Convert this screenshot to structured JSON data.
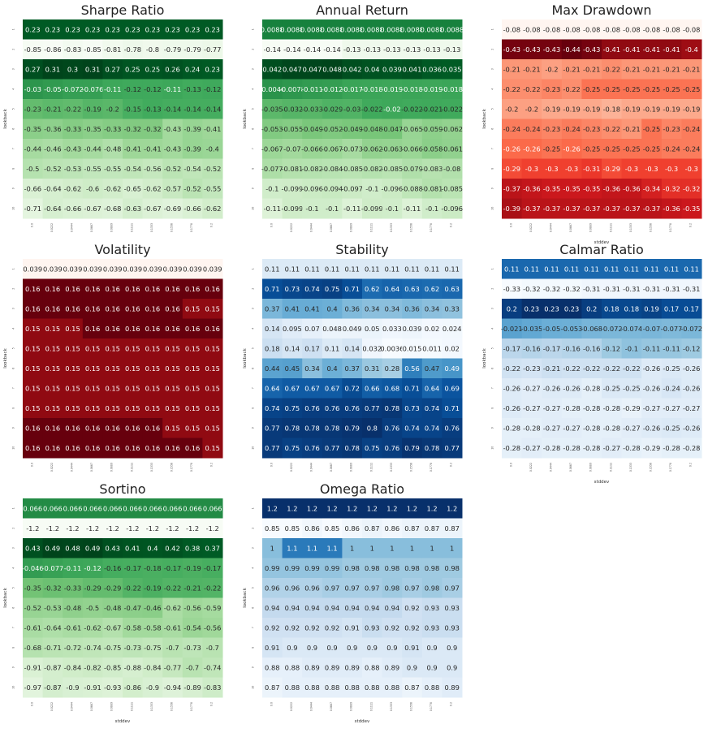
{
  "figure": {
    "x_ticks": [
      "0.0",
      "0.0222",
      "0.0444",
      "0.0667",
      "0.0889",
      "0.1111",
      "0.1333",
      "0.1556",
      "0.1778",
      "0.2"
    ],
    "y_ticks": [
      "1",
      "2",
      "3",
      "4",
      "5",
      "6",
      "7",
      "8",
      "9",
      "10"
    ],
    "xlabel": "stddev",
    "ylabel": "lookback"
  },
  "chart_data": [
    {
      "type": "heatmap",
      "title": "Sharpe Ratio",
      "colormap": "Greens",
      "show_xlabel": false,
      "show_ylabel": true,
      "x": [
        "0.0",
        "0.0222",
        "0.0444",
        "0.0667",
        "0.0889",
        "0.1111",
        "0.1333",
        "0.1556",
        "0.1778",
        "0.2"
      ],
      "y": [
        "1",
        "2",
        "3",
        "4",
        "5",
        "6",
        "7",
        "8",
        "9",
        "10"
      ],
      "values": [
        [
          0.23,
          0.23,
          0.23,
          0.23,
          0.23,
          0.23,
          0.23,
          0.23,
          0.23,
          0.23
        ],
        [
          -0.85,
          -0.86,
          -0.83,
          -0.85,
          -0.81,
          -0.78,
          -0.8,
          -0.79,
          -0.79,
          -0.77
        ],
        [
          0.27,
          0.31,
          0.3,
          0.31,
          0.27,
          0.25,
          0.25,
          0.26,
          0.24,
          0.23
        ],
        [
          -0.03,
          -0.05,
          -0.072,
          -0.076,
          -0.11,
          -0.12,
          -0.12,
          -0.11,
          -0.13,
          -0.12
        ],
        [
          -0.23,
          -0.21,
          -0.22,
          -0.19,
          -0.2,
          -0.15,
          -0.13,
          -0.14,
          -0.14,
          -0.14
        ],
        [
          -0.35,
          -0.36,
          -0.33,
          -0.35,
          -0.33,
          -0.32,
          -0.32,
          -0.43,
          -0.39,
          -0.41
        ],
        [
          -0.44,
          -0.46,
          -0.43,
          -0.44,
          -0.48,
          -0.41,
          -0.41,
          -0.43,
          -0.39,
          -0.4
        ],
        [
          -0.5,
          -0.52,
          -0.53,
          -0.55,
          -0.55,
          -0.54,
          -0.56,
          -0.52,
          -0.54,
          -0.52
        ],
        [
          -0.66,
          -0.64,
          -0.62,
          -0.6,
          -0.62,
          -0.65,
          -0.62,
          -0.57,
          -0.52,
          -0.55
        ],
        [
          -0.71,
          -0.64,
          -0.66,
          -0.67,
          -0.68,
          -0.63,
          -0.67,
          -0.69,
          -0.66,
          -0.62
        ]
      ]
    },
    {
      "type": "heatmap",
      "title": "Annual Return",
      "colormap": "Greens",
      "show_xlabel": false,
      "show_ylabel": true,
      "x": [
        "0.0",
        "0.0222",
        "0.0444",
        "0.0667",
        "0.0889",
        "0.1111",
        "0.1333",
        "0.1556",
        "0.1778",
        "0.2"
      ],
      "y": [
        "1",
        "2",
        "3",
        "4",
        "5",
        "6",
        "7",
        "8",
        "9",
        "10"
      ],
      "values": [
        [
          "0.0088",
          "0.0088",
          "0.0088",
          "0.0088",
          "0.0088",
          "0.0088",
          "0.0088",
          "0.0088",
          "0.0088",
          "0.0088"
        ],
        [
          -0.14,
          -0.14,
          -0.14,
          -0.14,
          -0.13,
          -0.13,
          -0.13,
          -0.13,
          -0.13,
          -0.13
        ],
        [
          0.042,
          0.047,
          0.047,
          0.048,
          0.042,
          0.04,
          0.039,
          0.041,
          0.036,
          0.035
        ],
        [
          -0.0046,
          -0.0078,
          -0.011,
          -0.012,
          -0.017,
          -0.018,
          -0.019,
          -0.018,
          -0.019,
          -0.018
        ],
        [
          -0.035,
          -0.032,
          -0.033,
          -0.029,
          -0.03,
          -0.022,
          -0.02,
          -0.022,
          -0.021,
          -0.022
        ],
        [
          -0.053,
          -0.055,
          -0.049,
          -0.052,
          -0.049,
          -0.048,
          -0.047,
          -0.065,
          -0.059,
          -0.062
        ],
        [
          -0.067,
          -0.07,
          -0.066,
          -0.067,
          -0.073,
          -0.062,
          -0.063,
          -0.066,
          -0.058,
          -0.061
        ],
        [
          -0.077,
          -0.081,
          -0.082,
          -0.084,
          -0.085,
          -0.082,
          -0.085,
          -0.079,
          -0.083,
          -0.08
        ],
        [
          -0.1,
          -0.099,
          -0.096,
          -0.094,
          -0.097,
          -0.1,
          -0.096,
          -0.088,
          -0.081,
          -0.085
        ],
        [
          -0.11,
          -0.099,
          -0.1,
          -0.1,
          -0.11,
          -0.099,
          -0.1,
          -0.11,
          -0.1,
          -0.096
        ]
      ]
    },
    {
      "type": "heatmap",
      "title": "Max Drawdown",
      "colormap": "Reds",
      "reverse": true,
      "show_xlabel": true,
      "show_ylabel": true,
      "x": [
        "0.0",
        "0.0222",
        "0.0444",
        "0.0667",
        "0.0889",
        "0.1111",
        "0.1333",
        "0.1556",
        "0.1778",
        "0.2"
      ],
      "y": [
        "1",
        "2",
        "3",
        "4",
        "5",
        "6",
        "7",
        "8",
        "9",
        "10"
      ],
      "values": [
        [
          -0.08,
          -0.08,
          -0.08,
          -0.08,
          -0.08,
          -0.08,
          -0.08,
          -0.08,
          -0.08,
          -0.08
        ],
        [
          -0.43,
          -0.43,
          -0.43,
          -0.44,
          -0.43,
          -0.41,
          -0.41,
          -0.41,
          -0.41,
          -0.4
        ],
        [
          -0.21,
          -0.21,
          -0.2,
          -0.21,
          -0.21,
          -0.22,
          -0.21,
          -0.21,
          -0.21,
          -0.21
        ],
        [
          -0.22,
          -0.22,
          -0.23,
          -0.22,
          -0.25,
          -0.25,
          -0.25,
          -0.25,
          -0.25,
          -0.25
        ],
        [
          -0.2,
          -0.2,
          -0.19,
          -0.19,
          -0.19,
          -0.18,
          -0.19,
          -0.19,
          -0.19,
          -0.19
        ],
        [
          -0.24,
          -0.24,
          -0.23,
          -0.24,
          -0.23,
          -0.22,
          -0.21,
          -0.25,
          -0.23,
          -0.24
        ],
        [
          -0.26,
          -0.26,
          -0.25,
          -0.26,
          -0.25,
          -0.25,
          -0.25,
          -0.25,
          -0.24,
          -0.24
        ],
        [
          -0.29,
          -0.3,
          -0.3,
          -0.3,
          -0.31,
          -0.29,
          -0.3,
          -0.3,
          -0.3,
          -0.3
        ],
        [
          -0.37,
          -0.36,
          -0.35,
          -0.35,
          -0.35,
          -0.36,
          -0.36,
          -0.34,
          -0.32,
          -0.32
        ],
        [
          -0.39,
          -0.37,
          -0.37,
          -0.37,
          -0.37,
          -0.37,
          -0.37,
          -0.37,
          -0.36,
          -0.35
        ]
      ]
    },
    {
      "type": "heatmap",
      "title": "Volatility",
      "colormap": "Reds",
      "show_xlabel": false,
      "show_ylabel": true,
      "x": [
        "0.0",
        "0.0222",
        "0.0444",
        "0.0667",
        "0.0889",
        "0.1111",
        "0.1333",
        "0.1556",
        "0.1778",
        "0.2"
      ],
      "y": [
        "1",
        "2",
        "3",
        "4",
        "5",
        "6",
        "7",
        "8",
        "9",
        "10"
      ],
      "values": [
        [
          0.039,
          0.039,
          0.039,
          0.039,
          0.039,
          0.039,
          0.039,
          0.039,
          0.039,
          0.039
        ],
        [
          0.16,
          0.16,
          0.16,
          0.16,
          0.16,
          0.16,
          0.16,
          0.16,
          0.16,
          0.16
        ],
        [
          0.16,
          0.16,
          0.16,
          0.16,
          0.16,
          0.16,
          0.16,
          0.16,
          0.15,
          0.15
        ],
        [
          0.15,
          0.15,
          0.15,
          0.16,
          0.16,
          0.16,
          0.16,
          0.16,
          0.16,
          0.16
        ],
        [
          0.15,
          0.15,
          0.15,
          0.15,
          0.15,
          0.15,
          0.15,
          0.15,
          0.15,
          0.15
        ],
        [
          0.15,
          0.15,
          0.15,
          0.15,
          0.15,
          0.15,
          0.15,
          0.15,
          0.15,
          0.15
        ],
        [
          0.15,
          0.15,
          0.15,
          0.15,
          0.15,
          0.15,
          0.15,
          0.15,
          0.15,
          0.15
        ],
        [
          0.15,
          0.15,
          0.15,
          0.15,
          0.15,
          0.15,
          0.15,
          0.15,
          0.15,
          0.15
        ],
        [
          0.16,
          0.16,
          0.16,
          0.16,
          0.16,
          0.16,
          0.16,
          0.15,
          0.15,
          0.15
        ],
        [
          0.16,
          0.16,
          0.16,
          0.16,
          0.16,
          0.16,
          0.16,
          0.16,
          0.16,
          0.15
        ]
      ]
    },
    {
      "type": "heatmap",
      "title": "Stability",
      "colormap": "Blues",
      "show_xlabel": false,
      "show_ylabel": true,
      "x": [
        "0.0",
        "0.0222",
        "0.0444",
        "0.0667",
        "0.0889",
        "0.1111",
        "0.1333",
        "0.1556",
        "0.1778",
        "0.2"
      ],
      "y": [
        "1",
        "2",
        "3",
        "4",
        "5",
        "6",
        "7",
        "8",
        "9",
        "10"
      ],
      "values": [
        [
          0.11,
          0.11,
          0.11,
          0.11,
          0.11,
          0.11,
          0.11,
          0.11,
          0.11,
          0.11
        ],
        [
          0.71,
          0.73,
          0.74,
          0.75,
          0.71,
          0.62,
          0.64,
          0.63,
          0.62,
          0.63
        ],
        [
          0.37,
          0.41,
          0.41,
          0.4,
          0.36,
          0.34,
          0.34,
          0.36,
          0.34,
          0.33
        ],
        [
          0.14,
          0.095,
          0.07,
          0.048,
          0.049,
          0.05,
          0.033,
          0.039,
          0.02,
          0.024
        ],
        [
          0.18,
          0.14,
          0.17,
          0.11,
          0.14,
          0.032,
          0.0036,
          0.015,
          0.011,
          0.02
        ],
        [
          0.44,
          0.45,
          0.34,
          0.4,
          0.37,
          0.31,
          0.28,
          0.56,
          0.47,
          0.49
        ],
        [
          0.64,
          0.67,
          0.67,
          0.67,
          0.72,
          0.66,
          0.68,
          0.71,
          0.64,
          0.69
        ],
        [
          0.74,
          0.75,
          0.76,
          0.76,
          0.76,
          0.77,
          0.78,
          0.73,
          0.74,
          0.71
        ],
        [
          0.77,
          0.78,
          0.78,
          0.78,
          0.79,
          0.8,
          0.76,
          0.74,
          0.74,
          0.76
        ],
        [
          0.77,
          0.75,
          0.76,
          0.77,
          0.78,
          0.75,
          0.76,
          0.79,
          0.78,
          0.77
        ]
      ]
    },
    {
      "type": "heatmap",
      "title": "Calmar Ratio",
      "colormap": "Blues",
      "show_xlabel": true,
      "show_ylabel": true,
      "x": [
        "0.0",
        "0.0222",
        "0.0444",
        "0.0667",
        "0.0889",
        "0.1111",
        "0.1333",
        "0.1556",
        "0.1778",
        "0.2"
      ],
      "y": [
        "1",
        "2",
        "3",
        "4",
        "5",
        "6",
        "7",
        "8",
        "9",
        "10"
      ],
      "values": [
        [
          0.11,
          0.11,
          0.11,
          0.11,
          0.11,
          0.11,
          0.11,
          0.11,
          0.11,
          0.11
        ],
        [
          -0.33,
          -0.32,
          -0.32,
          -0.32,
          -0.31,
          -0.31,
          -0.31,
          -0.31,
          -0.31,
          -0.31
        ],
        [
          0.2,
          0.23,
          0.23,
          0.23,
          0.2,
          0.18,
          0.18,
          0.19,
          0.17,
          0.17
        ],
        [
          -0.021,
          -0.035,
          -0.05,
          -0.053,
          -0.068,
          -0.072,
          -0.074,
          -0.07,
          -0.077,
          -0.072
        ],
        [
          -0.17,
          -0.16,
          -0.17,
          -0.16,
          -0.16,
          -0.12,
          -0.1,
          -0.11,
          -0.11,
          -0.12
        ],
        [
          -0.22,
          -0.23,
          -0.21,
          -0.22,
          -0.22,
          -0.22,
          -0.22,
          -0.26,
          -0.25,
          -0.26
        ],
        [
          -0.26,
          -0.27,
          -0.26,
          -0.26,
          -0.28,
          -0.25,
          -0.25,
          -0.26,
          -0.24,
          -0.26
        ],
        [
          -0.26,
          -0.27,
          -0.27,
          -0.28,
          -0.28,
          -0.28,
          -0.29,
          -0.27,
          -0.27,
          -0.27
        ],
        [
          -0.28,
          -0.28,
          -0.27,
          -0.27,
          -0.28,
          -0.28,
          -0.27,
          -0.26,
          -0.25,
          -0.26
        ],
        [
          -0.28,
          -0.27,
          -0.28,
          -0.28,
          -0.28,
          -0.27,
          -0.28,
          -0.29,
          -0.28,
          -0.28
        ]
      ]
    },
    {
      "type": "heatmap",
      "title": "Sortino",
      "colormap": "Greens",
      "show_xlabel": true,
      "show_ylabel": true,
      "x": [
        "0.0",
        "0.0222",
        "0.0444",
        "0.0667",
        "0.0889",
        "0.1111",
        "0.1333",
        "0.1556",
        "0.1778",
        "0.2"
      ],
      "y": [
        "1",
        "2",
        "3",
        "4",
        "5",
        "6",
        "7",
        "8",
        "9",
        "10"
      ],
      "values": [
        [
          0.066,
          0.066,
          0.066,
          0.066,
          0.066,
          0.066,
          0.066,
          0.066,
          0.066,
          0.066
        ],
        [
          -1.2,
          -1.2,
          -1.2,
          -1.2,
          -1.2,
          -1.2,
          -1.2,
          -1.2,
          -1.2,
          -1.2
        ],
        [
          0.43,
          0.49,
          0.48,
          0.49,
          0.43,
          0.41,
          0.4,
          0.42,
          0.38,
          0.37
        ],
        [
          -0.046,
          -0.077,
          -0.11,
          -0.12,
          -0.16,
          -0.17,
          -0.18,
          -0.17,
          -0.19,
          -0.17
        ],
        [
          -0.35,
          -0.32,
          -0.33,
          -0.29,
          -0.29,
          -0.22,
          -0.19,
          -0.22,
          -0.21,
          -0.22
        ],
        [
          -0.52,
          -0.53,
          -0.48,
          -0.5,
          -0.48,
          -0.47,
          -0.46,
          -0.62,
          -0.56,
          -0.59
        ],
        [
          -0.61,
          -0.64,
          -0.61,
          -0.62,
          -0.67,
          -0.58,
          -0.58,
          -0.61,
          -0.54,
          -0.56
        ],
        [
          -0.68,
          -0.71,
          -0.72,
          -0.74,
          -0.75,
          -0.73,
          -0.75,
          -0.7,
          -0.73,
          -0.7
        ],
        [
          -0.91,
          -0.87,
          -0.84,
          -0.82,
          -0.85,
          -0.88,
          -0.84,
          -0.77,
          -0.7,
          -0.74
        ],
        [
          -0.97,
          -0.87,
          -0.9,
          -0.91,
          -0.93,
          -0.86,
          -0.9,
          -0.94,
          -0.89,
          -0.83
        ]
      ]
    },
    {
      "type": "heatmap",
      "title": "Omega Ratio",
      "colormap": "Blues",
      "show_xlabel": true,
      "show_ylabel": true,
      "x": [
        "0.0",
        "0.0222",
        "0.0444",
        "0.0667",
        "0.0889",
        "0.1111",
        "0.1333",
        "0.1556",
        "0.1778",
        "0.2"
      ],
      "y": [
        "1",
        "2",
        "3",
        "4",
        "5",
        "6",
        "7",
        "8",
        "9",
        "10"
      ],
      "values": [
        [
          1.2,
          1.2,
          1.2,
          1.2,
          1.2,
          1.2,
          1.2,
          1.2,
          1.2,
          1.2
        ],
        [
          0.85,
          0.85,
          0.86,
          0.85,
          0.86,
          0.87,
          0.86,
          0.87,
          0.87,
          0.87
        ],
        [
          1,
          1.1,
          1.1,
          1.1,
          1,
          1,
          1,
          1,
          1,
          1
        ],
        [
          0.99,
          0.99,
          0.99,
          0.99,
          0.98,
          0.98,
          0.98,
          0.98,
          0.98,
          0.98
        ],
        [
          0.96,
          0.96,
          0.96,
          0.97,
          0.97,
          0.97,
          0.98,
          0.97,
          0.98,
          0.97
        ],
        [
          0.94,
          0.94,
          0.94,
          0.94,
          0.94,
          0.94,
          0.94,
          0.92,
          0.93,
          0.93
        ],
        [
          0.92,
          0.92,
          0.92,
          0.92,
          0.91,
          0.93,
          0.92,
          0.92,
          0.93,
          0.93
        ],
        [
          0.91,
          0.9,
          0.9,
          0.9,
          0.9,
          0.9,
          0.9,
          0.91,
          0.9,
          0.9
        ],
        [
          0.88,
          0.88,
          0.89,
          0.89,
          0.89,
          0.88,
          0.89,
          0.9,
          0.9,
          0.9
        ],
        [
          0.87,
          0.88,
          0.88,
          0.88,
          0.88,
          0.88,
          0.88,
          0.87,
          0.88,
          0.89
        ]
      ]
    }
  ]
}
